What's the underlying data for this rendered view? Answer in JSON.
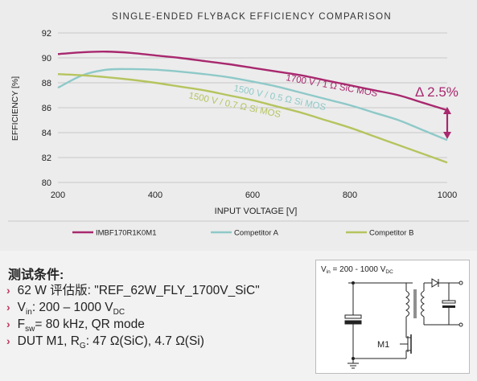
{
  "chart_data": {
    "type": "line",
    "title": "SINGLE-ENDED FLYBACK EFFICIENCY COMPARISON",
    "xlabel": "INPUT VOLTAGE [V]",
    "ylabel": "EFFICIENCY [%]",
    "xlim": [
      200,
      1000
    ],
    "ylim": [
      80,
      92
    ],
    "xticks": [
      "200",
      "400",
      "600",
      "800",
      "1000"
    ],
    "yticks": [
      "80",
      "82",
      "84",
      "86",
      "88",
      "90",
      "92"
    ],
    "grid": true,
    "legend_position": "bottom",
    "series": [
      {
        "name": "IMBF170R1K0M1",
        "color": "#a8286e",
        "x": [
          200,
          250,
          300,
          350,
          400,
          450,
          500,
          550,
          600,
          650,
          700,
          750,
          800,
          850,
          900,
          950,
          1000
        ],
        "y": [
          90.3,
          90.45,
          90.5,
          90.4,
          90.2,
          90.0,
          89.75,
          89.5,
          89.2,
          88.9,
          88.6,
          88.2,
          87.8,
          87.4,
          87.0,
          86.4,
          85.8
        ]
      },
      {
        "name": "Competitor A",
        "color": "#8ec9c8",
        "x": [
          200,
          250,
          300,
          350,
          400,
          450,
          500,
          550,
          600,
          650,
          700,
          750,
          800,
          850,
          900,
          950,
          1000
        ],
        "y": [
          87.6,
          88.6,
          89.05,
          89.1,
          89.05,
          88.9,
          88.7,
          88.45,
          88.1,
          87.7,
          87.2,
          86.7,
          86.2,
          85.6,
          85.0,
          84.2,
          83.4
        ]
      },
      {
        "name": "Competitor B",
        "color": "#b6c45e",
        "x": [
          200,
          250,
          300,
          350,
          400,
          450,
          500,
          550,
          600,
          650,
          700,
          750,
          800,
          850,
          900,
          950,
          1000
        ],
        "y": [
          88.7,
          88.6,
          88.45,
          88.25,
          88.0,
          87.7,
          87.4,
          87.0,
          86.6,
          86.1,
          85.6,
          85.0,
          84.4,
          83.7,
          83.0,
          82.3,
          81.6
        ]
      }
    ],
    "annotations": [
      {
        "text": "1700 V / 1 Ω SiC MOS",
        "color": "#a8286e"
      },
      {
        "text": "1500 V / 0.5 Ω Si MOS",
        "color": "#8ec9c8"
      },
      {
        "text": "1500 V / 0.7 Ω Si MOS",
        "color": "#b6c45e"
      },
      {
        "text": "Δ 2.5%",
        "color": "#a8286e"
      }
    ]
  },
  "conditions": {
    "title": "测试条件:",
    "chevron": "›",
    "items": [
      {
        "main": "62 W 评估版: \"REF_62W_FLY_1700V_SiC\""
      },
      {
        "pre": "V",
        "sub": "in",
        "mid": ": 200 – 1000 V",
        "sub2": "DC"
      },
      {
        "pre": "F",
        "sub": "sw",
        "mid": "= 80 kHz, QR mode"
      },
      {
        "pre": "DUT M1, R",
        "sub": "G",
        "mid": ": 47 Ω(SiC), 4.7 Ω(Si)"
      }
    ]
  },
  "circuit": {
    "vin_pre": "V",
    "vin_sub": "in",
    "vin_text": " = 200 - 1000 V",
    "vin_sub2": "DC",
    "mosfet_label": "M1"
  }
}
